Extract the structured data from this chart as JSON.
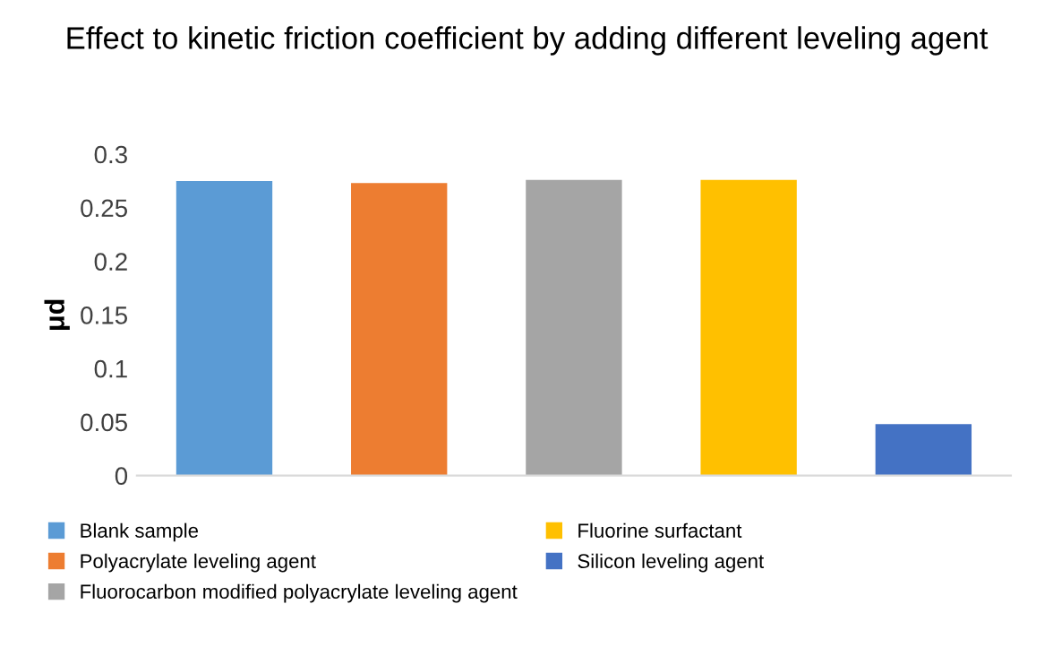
{
  "chart_data": {
    "type": "bar",
    "title": "Effect to kinetic friction coefficient by adding different leveling agent",
    "ylabel": "μd",
    "categories": [
      null,
      null,
      null,
      null,
      null
    ],
    "series": [
      {
        "name": "Blank sample",
        "color": "#5b9bd5",
        "values": [
          0.275,
          null,
          null,
          null,
          null
        ]
      },
      {
        "name": "Polyacrylate leveling agent",
        "color": "#ed7d31",
        "values": [
          null,
          0.273,
          null,
          null,
          null
        ]
      },
      {
        "name": "Fluorocarbon modified polyacrylate leveling agent",
        "color": "#a5a5a5",
        "values": [
          null,
          null,
          0.276,
          null,
          null
        ]
      },
      {
        "name": "Fluorine surfactant",
        "color": "#ffc000",
        "values": [
          null,
          null,
          null,
          0.276,
          null
        ]
      },
      {
        "name": "Silicon leveling agent",
        "color": "#4472c4",
        "values": [
          null,
          null,
          null,
          null,
          0.048
        ]
      }
    ],
    "ylim": [
      0,
      0.3
    ],
    "yticks": [
      0,
      0.05,
      0.1,
      0.15,
      0.2,
      0.25,
      0.3
    ],
    "grid": false,
    "legend": "bottom"
  }
}
